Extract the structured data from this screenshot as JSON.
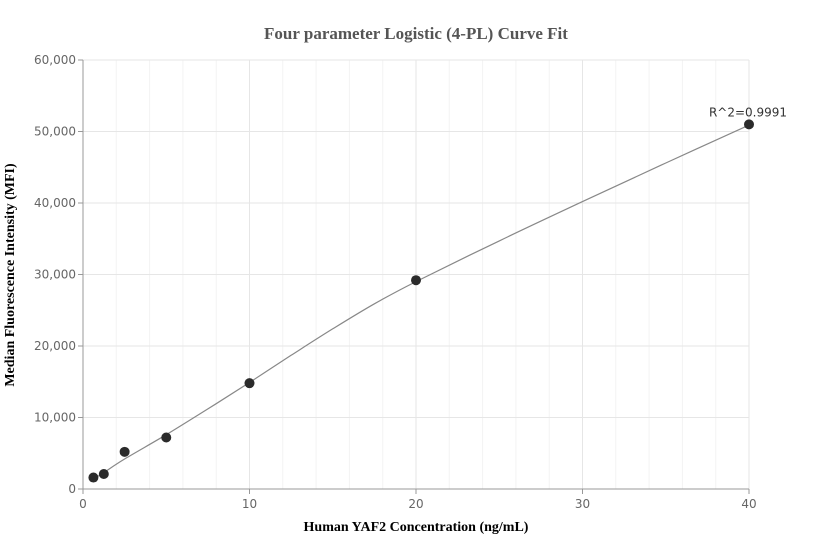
{
  "chart_data": {
    "type": "scatter",
    "title": "Four parameter Logistic (4-PL) Curve Fit",
    "xlabel": "Human YAF2 Concentration (ng/mL)",
    "ylabel": "Median Fluorescence Intensity (MFI)",
    "xlim": [
      0,
      40
    ],
    "ylim": [
      0,
      60000
    ],
    "x_ticks": [
      0,
      10,
      20,
      30,
      40
    ],
    "x_tick_labels": [
      "0",
      "10",
      "20",
      "30",
      "40"
    ],
    "y_ticks": [
      0,
      10000,
      20000,
      30000,
      40000,
      50000,
      60000
    ],
    "y_tick_labels": [
      "0",
      "10,000",
      "20,000",
      "30,000",
      "40,000",
      "50,000",
      "60,000"
    ],
    "grid": true,
    "points": [
      {
        "x": 0.625,
        "y": 1600
      },
      {
        "x": 1.25,
        "y": 2100
      },
      {
        "x": 2.5,
        "y": 5200
      },
      {
        "x": 5,
        "y": 7200
      },
      {
        "x": 10,
        "y": 14800
      },
      {
        "x": 20,
        "y": 29200
      },
      {
        "x": 40,
        "y": 51000
      }
    ],
    "fit_curve": {
      "x": [
        0.625,
        1.25,
        2.5,
        5,
        7.5,
        10,
        12.5,
        15,
        17.5,
        20,
        25,
        30,
        35,
        40
      ],
      "y": [
        1400,
        2300,
        4200,
        7600,
        11200,
        14900,
        18700,
        22400,
        25900,
        29000,
        34700,
        40200,
        45600,
        50900
      ]
    },
    "annotation": {
      "text": "R^2=0.9991",
      "x": 40,
      "y": 51000
    },
    "colors": {
      "points": "#2b2b2b",
      "curve": "#888888",
      "grid": "#e6e6e6",
      "axis": "#999999"
    }
  }
}
